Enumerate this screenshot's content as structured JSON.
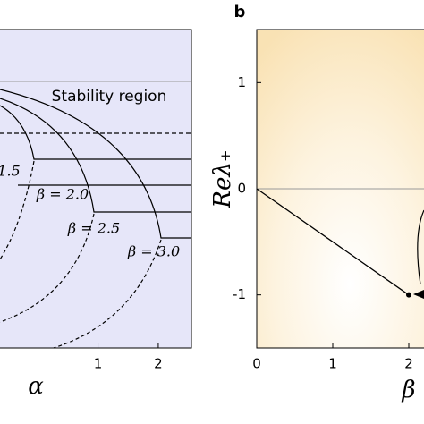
{
  "chart_data": [
    {
      "type": "line",
      "xlabel": "α",
      "xlim": [
        -0.64,
        2.55
      ],
      "xticks": [
        1,
        2
      ],
      "annotations": [
        "Stability region",
        "1.5",
        "β = 2.0",
        "β = 2.5",
        "β = 3.0"
      ]
    },
    {
      "type": "line",
      "panel_label": "b",
      "xlabel": "β",
      "ylabel": "Reλ₊",
      "xlim": [
        0,
        2.2
      ],
      "ylim": [
        -1.5,
        1.5
      ],
      "xticks": [
        0,
        1,
        2
      ],
      "yticks": [
        1,
        0,
        -1
      ],
      "series": [
        {
          "color": "#000000",
          "x": [
            0,
            2
          ],
          "values": [
            0,
            -1
          ]
        }
      ]
    }
  ]
}
